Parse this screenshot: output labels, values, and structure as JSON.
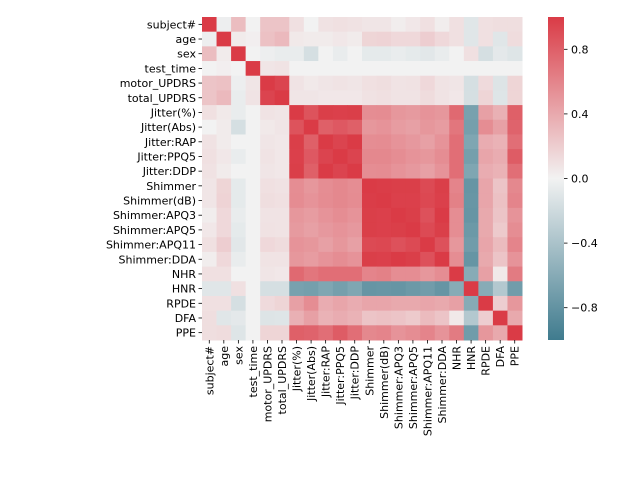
{
  "chart_data": {
    "type": "heatmap",
    "title": "",
    "labels": [
      "subject#",
      "age",
      "sex",
      "test_time",
      "motor_UPDRS",
      "total_UPDRS",
      "Jitter(%)",
      "Jitter(Abs)",
      "Jitter:RAP",
      "Jitter:PPQ5",
      "Jitter:DDP",
      "Shimmer",
      "Shimmer(dB)",
      "Shimmer:APQ3",
      "Shimmer:APQ5",
      "Shimmer:APQ11",
      "Shimmer:DDA",
      "NHR",
      "HNR",
      "RPDE",
      "DFA",
      "PPE"
    ],
    "matrix": [
      [
        1,
        -0.03,
        0.29,
        0,
        0.25,
        0.25,
        0.1,
        0,
        0.09,
        0.1,
        0.09,
        0.07,
        0.07,
        0.03,
        0.06,
        0.1,
        0.03,
        0.1,
        -0.1,
        0.1,
        0.11,
        0.11
      ],
      [
        -0.03,
        1,
        0.04,
        0.02,
        0.27,
        0.31,
        0.05,
        0.04,
        0.04,
        0.06,
        0.04,
        0.16,
        0.17,
        0.14,
        0.14,
        0.2,
        0.14,
        0.1,
        -0.1,
        0.1,
        -0.1,
        0.12
      ],
      [
        0.29,
        0.04,
        1,
        0,
        -0.03,
        -0.05,
        -0.05,
        -0.16,
        0,
        -0.05,
        0,
        -0.07,
        -0.07,
        -0.05,
        -0.07,
        -0.09,
        -0.05,
        0,
        0.1,
        -0.16,
        -0.08,
        -0.11
      ],
      [
        0,
        0.02,
        0,
        1,
        0.07,
        0.08,
        0,
        0,
        0,
        0,
        0,
        0,
        0,
        0,
        0,
        0,
        0,
        0,
        0,
        0,
        0,
        0
      ],
      [
        0.25,
        0.27,
        -0.03,
        0.07,
        1,
        0.95,
        0.08,
        0.05,
        0.07,
        0.08,
        0.07,
        0.1,
        0.11,
        0.08,
        0.09,
        0.14,
        0.08,
        0.07,
        -0.16,
        0.13,
        -0.12,
        0.16
      ],
      [
        0.25,
        0.31,
        -0.05,
        0.08,
        0.95,
        1,
        0.07,
        0.07,
        0.06,
        0.06,
        0.06,
        0.09,
        0.1,
        0.08,
        0.08,
        0.12,
        0.08,
        0.06,
        -0.16,
        0.16,
        -0.11,
        0.16
      ],
      [
        0.1,
        0.05,
        -0.05,
        0,
        0.08,
        0.07,
        1,
        0.87,
        0.98,
        0.97,
        0.98,
        0.55,
        0.56,
        0.5,
        0.48,
        0.52,
        0.5,
        0.75,
        -0.68,
        0.45,
        0.36,
        0.8
      ],
      [
        0,
        0.04,
        -0.16,
        0,
        0.05,
        0.07,
        0.87,
        1,
        0.8,
        0.84,
        0.8,
        0.5,
        0.52,
        0.47,
        0.45,
        0.5,
        0.47,
        0.68,
        -0.7,
        0.55,
        0.45,
        0.78
      ],
      [
        0.09,
        0.04,
        0,
        0,
        0.07,
        0.06,
        0.98,
        0.8,
        1,
        0.95,
        1,
        0.55,
        0.56,
        0.52,
        0.49,
        0.45,
        0.52,
        0.72,
        -0.64,
        0.38,
        0.35,
        0.72
      ],
      [
        0.1,
        0.06,
        -0.05,
        0,
        0.08,
        0.06,
        0.97,
        0.84,
        0.95,
        1,
        0.95,
        0.58,
        0.58,
        0.55,
        0.52,
        0.5,
        0.55,
        0.72,
        -0.7,
        0.42,
        0.38,
        0.82
      ],
      [
        0.09,
        0.04,
        0,
        0,
        0.07,
        0.06,
        0.98,
        0.8,
        1,
        0.95,
        1,
        0.55,
        0.56,
        0.52,
        0.49,
        0.45,
        0.52,
        0.72,
        -0.64,
        0.38,
        0.35,
        0.72
      ],
      [
        0.07,
        0.16,
        -0.07,
        0,
        0.1,
        0.09,
        0.55,
        0.5,
        0.55,
        0.58,
        0.55,
        1,
        0.99,
        0.98,
        0.98,
        0.92,
        0.98,
        0.6,
        -0.78,
        0.42,
        0.25,
        0.58
      ],
      [
        0.07,
        0.17,
        -0.07,
        0,
        0.11,
        0.1,
        0.56,
        0.52,
        0.56,
        0.58,
        0.56,
        0.99,
        1,
        0.97,
        0.97,
        0.93,
        0.97,
        0.62,
        -0.77,
        0.42,
        0.27,
        0.6
      ],
      [
        0.03,
        0.14,
        -0.05,
        0,
        0.08,
        0.08,
        0.5,
        0.47,
        0.52,
        0.55,
        0.52,
        0.98,
        0.97,
        1,
        0.98,
        0.88,
        1,
        0.55,
        -0.78,
        0.4,
        0.25,
        0.52
      ],
      [
        0.06,
        0.14,
        -0.07,
        0,
        0.09,
        0.08,
        0.48,
        0.45,
        0.49,
        0.52,
        0.49,
        0.98,
        0.97,
        0.98,
        1,
        0.92,
        0.98,
        0.55,
        -0.75,
        0.4,
        0.22,
        0.55
      ],
      [
        0.1,
        0.2,
        -0.09,
        0,
        0.14,
        0.12,
        0.52,
        0.5,
        0.45,
        0.5,
        0.45,
        0.92,
        0.93,
        0.88,
        0.92,
        1,
        0.88,
        0.5,
        -0.72,
        0.42,
        0.3,
        0.6
      ],
      [
        0.03,
        0.14,
        -0.05,
        0,
        0.08,
        0.08,
        0.5,
        0.47,
        0.52,
        0.55,
        0.52,
        0.98,
        0.97,
        1,
        0.98,
        0.88,
        1,
        0.55,
        -0.78,
        0.4,
        0.25,
        0.52
      ],
      [
        0.1,
        0.1,
        0,
        0,
        0.07,
        0.06,
        0.75,
        0.68,
        0.72,
        0.72,
        0.72,
        0.6,
        0.62,
        0.55,
        0.55,
        0.5,
        0.55,
        1,
        -0.6,
        0.45,
        0.05,
        0.65
      ],
      [
        -0.1,
        -0.1,
        0.1,
        0,
        -0.16,
        -0.16,
        -0.68,
        -0.7,
        -0.64,
        -0.7,
        -0.64,
        -0.78,
        -0.77,
        -0.78,
        -0.75,
        -0.72,
        -0.78,
        -0.6,
        1,
        -0.6,
        -0.35,
        -0.72
      ],
      [
        0.1,
        0.1,
        -0.16,
        0,
        0.13,
        0.16,
        0.45,
        0.55,
        0.38,
        0.42,
        0.38,
        0.42,
        0.42,
        0.4,
        0.4,
        0.42,
        0.4,
        0.45,
        -0.6,
        1,
        0.2,
        0.5
      ],
      [
        0.11,
        -0.1,
        -0.08,
        0,
        -0.12,
        -0.11,
        0.36,
        0.45,
        0.35,
        0.38,
        0.35,
        0.25,
        0.27,
        0.25,
        0.22,
        0.3,
        0.25,
        0.05,
        -0.35,
        0.2,
        1,
        0.4
      ],
      [
        0.11,
        0.12,
        -0.11,
        0,
        0.16,
        0.16,
        0.8,
        0.78,
        0.72,
        0.82,
        0.72,
        0.58,
        0.6,
        0.52,
        0.55,
        0.6,
        0.52,
        0.65,
        -0.72,
        0.5,
        0.4,
        1
      ]
    ],
    "vmin": -1,
    "vmax": 1,
    "colorbar_ticks": [
      0.8,
      0.4,
      0.0,
      -0.4,
      -0.8
    ],
    "colorbar_tick_labels": [
      "0.8",
      "0.4",
      "0.0",
      "−0.4",
      "−0.8"
    ],
    "colors": {
      "low": "#3f7b8e",
      "mid": "#f2f2f2",
      "high": "#da3b46"
    }
  }
}
